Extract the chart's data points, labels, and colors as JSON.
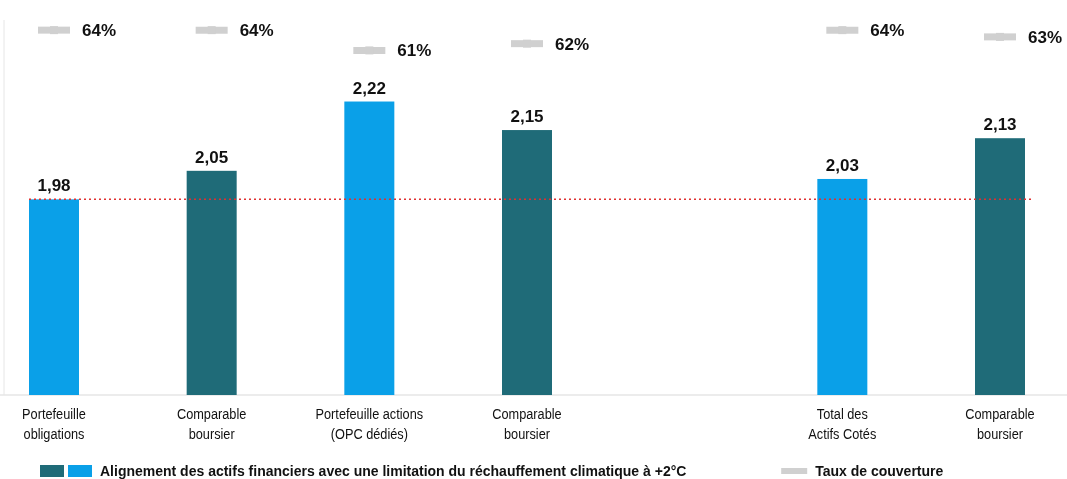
{
  "chart_data": {
    "type": "bar",
    "categories": [
      "Portefeuille\nobligations",
      "Comparable\nboursier",
      "Portefeuille actions\n(OPC dédiés)",
      "Comparable\nboursier",
      null,
      "Total des\nActifs Cotés",
      "Comparable\nboursier"
    ],
    "series": [
      {
        "name": "Alignement des actifs financiers avec une limitation du réchauffement climatique à +2°C",
        "color": "#1f6b78",
        "colors": [
          "#0aa0e8",
          "#1f6b78",
          "#0aa0e8",
          "#1f6b78",
          null,
          "#0aa0e8",
          "#1f6b78"
        ],
        "values": [
          1.98,
          2.05,
          2.22,
          2.15,
          null,
          2.03,
          2.13
        ],
        "value_labels": [
          "1,98",
          "2,05",
          "2,22",
          "2,15",
          null,
          "2,03",
          "2,13"
        ]
      },
      {
        "name": "Taux de couverture",
        "type": "scatter",
        "axis": "y2",
        "color": "#d0d0d0",
        "marker": "square",
        "values": [
          64,
          64,
          61,
          62,
          null,
          64,
          63
        ],
        "value_labels": [
          "64%",
          "64%",
          "61%",
          "62%",
          null,
          "64%",
          "63%"
        ]
      }
    ],
    "ylim": [
      1.5,
      2.42
    ],
    "tick_labels": "x",
    "legend": "bottom",
    "ref_lines": [
      {
        "axis": "y",
        "value": 1.98,
        "color": "#e03030",
        "line_style": "dotted"
      }
    ]
  }
}
